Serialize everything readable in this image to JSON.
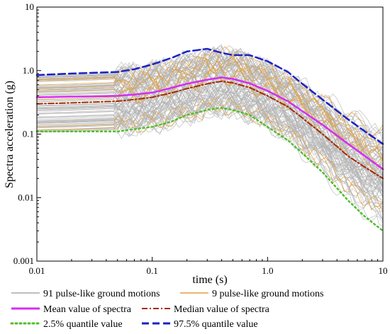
{
  "chart_data": {
    "type": "line",
    "title": "",
    "xlabel": "time (s)",
    "ylabel": "Spectra acceleration (g)",
    "x_scale": "log",
    "y_scale": "log",
    "xlim": [
      0.01,
      10
    ],
    "ylim": [
      0.001,
      10
    ],
    "xticks": [
      "0.01",
      "0.1",
      "1.0",
      "10"
    ],
    "yticks": [
      "0.001",
      "0.01",
      "0.1",
      "1.0",
      "10"
    ],
    "grid": false,
    "legend_position": "bottom",
    "x": [
      0.01,
      0.02,
      0.05,
      0.07,
      0.1,
      0.15,
      0.2,
      0.3,
      0.4,
      0.5,
      0.7,
      1.0,
      1.5,
      2.0,
      3.0,
      5.0,
      7.0,
      10.0
    ],
    "series": [
      {
        "name": "Mean value of spectra",
        "color": "#d62cf2",
        "style": "solid",
        "width": 2.5,
        "values": [
          0.38,
          0.39,
          0.4,
          0.42,
          0.45,
          0.54,
          0.62,
          0.72,
          0.78,
          0.74,
          0.63,
          0.48,
          0.33,
          0.23,
          0.14,
          0.07,
          0.045,
          0.028
        ]
      },
      {
        "name": "Median value of  spectra",
        "color": "#a52a00",
        "style": "dashdot",
        "width": 2,
        "values": [
          0.3,
          0.31,
          0.33,
          0.35,
          0.38,
          0.45,
          0.52,
          0.62,
          0.68,
          0.64,
          0.54,
          0.4,
          0.27,
          0.18,
          0.1,
          0.045,
          0.03,
          0.02
        ]
      },
      {
        "name": "2.5% quantile value",
        "color": "#4fbf2a",
        "style": "dotted",
        "width": 2.5,
        "values": [
          0.11,
          0.11,
          0.11,
          0.12,
          0.13,
          0.16,
          0.2,
          0.24,
          0.26,
          0.24,
          0.2,
          0.13,
          0.08,
          0.05,
          0.025,
          0.009,
          0.005,
          0.003
        ]
      },
      {
        "name": "97.5% quantile value",
        "color": "#1a22c8",
        "style": "dashed",
        "width": 2.5,
        "values": [
          0.85,
          0.9,
          0.95,
          1.05,
          1.25,
          1.6,
          2.0,
          2.2,
          1.9,
          1.75,
          1.75,
          1.4,
          0.95,
          0.62,
          0.35,
          0.17,
          0.11,
          0.07
        ]
      }
    ],
    "envelope_label_gray": "91 pulse-like ground motions",
    "envelope_label_orange": "9 pulse-like ground motions",
    "gray_color": "#b4b4b4",
    "orange_color": "#e0a040"
  },
  "legend": {
    "gray_label": "91 pulse-like ground motions",
    "orange_label": "9 pulse-like ground motions",
    "mean_label": "Mean value of spectra",
    "median_label": "Median value of  spectra",
    "q25_label": "2.5% quantile value",
    "q975_label": "97.5% quantile value"
  }
}
